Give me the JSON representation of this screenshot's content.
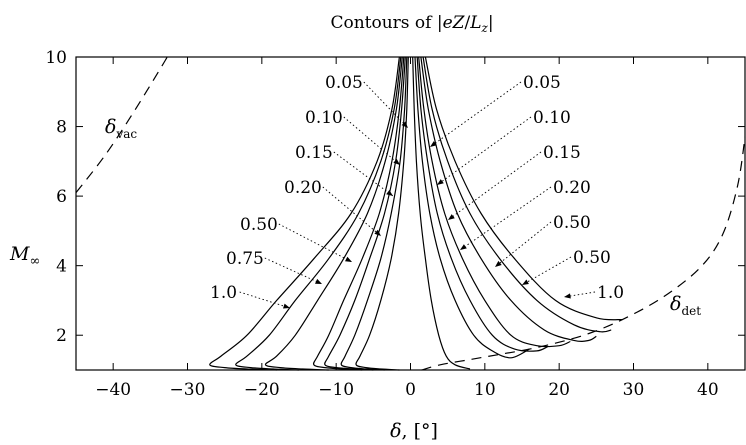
{
  "chart_data": {
    "type": "line",
    "title_parts": [
      "Contours of |",
      "eZ",
      "/",
      "L",
      "z",
      "|"
    ],
    "xlabel_parts": [
      "δ",
      ", [°]"
    ],
    "ylabel_parts": [
      "M",
      "∞"
    ],
    "xlim": [
      -45,
      45
    ],
    "ylim": [
      1,
      10
    ],
    "xticks": [
      -40,
      -30,
      -20,
      -10,
      0,
      10,
      20,
      30,
      40
    ],
    "yticks": [
      2,
      4,
      6,
      8,
      10
    ],
    "xtick_labels": [
      "−40",
      "−30",
      "−20",
      "−10",
      "0",
      "10",
      "20",
      "30",
      "40"
    ],
    "ytick_labels": [
      "2",
      "4",
      "6",
      "8",
      "10"
    ],
    "grid": false,
    "regions": [
      {
        "main": "δ",
        "sub": "vac",
        "points": [
          [
            -45,
            6.1
          ],
          [
            -41,
            7.2
          ],
          [
            -37,
            8.5
          ],
          [
            -33,
            9.9
          ],
          [
            -32.8,
            10
          ]
        ]
      },
      {
        "main": "δ",
        "sub": "det",
        "points": [
          [
            1.5,
            1
          ],
          [
            4,
            1.15
          ],
          [
            8,
            1.3
          ],
          [
            12,
            1.45
          ],
          [
            16,
            1.6
          ],
          [
            20,
            1.8
          ],
          [
            24,
            2.05
          ],
          [
            28.5,
            2.45
          ],
          [
            34,
            3.1
          ],
          [
            39,
            3.95
          ],
          [
            42,
            4.9
          ],
          [
            44,
            6.3
          ],
          [
            45,
            7.7
          ]
        ]
      }
    ],
    "series": [
      {
        "name": "1.0",
        "side": "left",
        "points": [
          [
            -1.5,
            10
          ],
          [
            -2.5,
            8.5
          ],
          [
            -4.5,
            7
          ],
          [
            -8,
            5.5
          ],
          [
            -13,
            4.2
          ],
          [
            -18,
            3
          ],
          [
            -22,
            2
          ],
          [
            -25.5,
            1.4
          ],
          [
            -27,
            1.15
          ],
          [
            -25,
            1.07
          ],
          [
            -22,
            1.03
          ],
          [
            -18,
            1
          ]
        ]
      },
      {
        "name": "0.75",
        "side": "left",
        "points": [
          [
            -1.3,
            10
          ],
          [
            -2.2,
            8.5
          ],
          [
            -4,
            7
          ],
          [
            -7,
            5.5
          ],
          [
            -11,
            4.2
          ],
          [
            -15.5,
            3
          ],
          [
            -19,
            2
          ],
          [
            -22,
            1.4
          ],
          [
            -23.5,
            1.15
          ],
          [
            -21.5,
            1.07
          ],
          [
            -18.5,
            1.03
          ],
          [
            -15,
            1
          ]
        ]
      },
      {
        "name": "0.50",
        "side": "left",
        "points": [
          [
            -1.1,
            10
          ],
          [
            -1.9,
            8.5
          ],
          [
            -3.4,
            7
          ],
          [
            -5.8,
            5.5
          ],
          [
            -9,
            4.2
          ],
          [
            -12.5,
            3
          ],
          [
            -15.5,
            2
          ],
          [
            -18,
            1.4
          ],
          [
            -19.5,
            1.15
          ],
          [
            -17.5,
            1.07
          ],
          [
            -14.5,
            1.03
          ],
          [
            -11,
            1
          ]
        ]
      },
      {
        "name": "0.20",
        "side": "left",
        "points": [
          [
            -0.9,
            10
          ],
          [
            -1.5,
            8.5
          ],
          [
            -2.5,
            7
          ],
          [
            -4.2,
            5.5
          ],
          [
            -6.5,
            4.2
          ],
          [
            -9,
            3
          ],
          [
            -11,
            2
          ],
          [
            -12.5,
            1.4
          ],
          [
            -13,
            1.15
          ],
          [
            -11.5,
            1.07
          ],
          [
            -9,
            1.03
          ],
          [
            -6.5,
            1
          ]
        ]
      },
      {
        "name": "0.15",
        "side": "left",
        "points": [
          [
            -0.7,
            10
          ],
          [
            -1.2,
            8.5
          ],
          [
            -2,
            7
          ],
          [
            -3.5,
            5.5
          ],
          [
            -5.5,
            4.2
          ],
          [
            -7.5,
            3
          ],
          [
            -9.5,
            2
          ],
          [
            -11,
            1.4
          ],
          [
            -11.5,
            1.15
          ],
          [
            -10,
            1.07
          ],
          [
            -7.5,
            1.03
          ],
          [
            -5,
            1
          ]
        ]
      },
      {
        "name": "0.10",
        "side": "left",
        "points": [
          [
            -0.5,
            10
          ],
          [
            -0.8,
            8.5
          ],
          [
            -1.4,
            7
          ],
          [
            -2.6,
            5.5
          ],
          [
            -4,
            4.2
          ],
          [
            -5.8,
            3
          ],
          [
            -7.5,
            2
          ],
          [
            -8.8,
            1.4
          ],
          [
            -9.3,
            1.15
          ],
          [
            -8,
            1.07
          ],
          [
            -6,
            1.03
          ],
          [
            -3.5,
            1
          ]
        ]
      },
      {
        "name": "0.05",
        "side": "left",
        "points": [
          [
            -0.3,
            10
          ],
          [
            -0.5,
            8.5
          ],
          [
            -0.9,
            7
          ],
          [
            -1.6,
            5.5
          ],
          [
            -2.6,
            4.2
          ],
          [
            -4,
            3
          ],
          [
            -5.5,
            2
          ],
          [
            -6.8,
            1.4
          ],
          [
            -7.3,
            1.15
          ],
          [
            -6,
            1.07
          ],
          [
            -4,
            1.03
          ],
          [
            -1.5,
            1
          ]
        ]
      },
      {
        "name": "0.05",
        "side": "right",
        "points": [
          [
            0.3,
            10
          ],
          [
            0.5,
            8.5
          ],
          [
            0.8,
            7
          ],
          [
            1.3,
            5.5
          ],
          [
            2,
            4.2
          ],
          [
            2.8,
            3
          ],
          [
            3.8,
            2
          ],
          [
            4.8,
            1.4
          ],
          [
            6,
            1.15
          ],
          [
            8,
            1.03
          ]
        ]
      },
      {
        "name": "0.10",
        "side": "right",
        "points": [
          [
            0.6,
            10
          ],
          [
            1,
            8.5
          ],
          [
            1.6,
            7
          ],
          [
            2.6,
            5.5
          ],
          [
            4,
            4.2
          ],
          [
            6,
            3
          ],
          [
            8.5,
            2
          ],
          [
            11,
            1.55
          ],
          [
            13.5,
            1.35
          ],
          [
            16,
            1.6
          ]
        ]
      },
      {
        "name": "0.15",
        "side": "right",
        "points": [
          [
            0.9,
            10
          ],
          [
            1.4,
            8.5
          ],
          [
            2.3,
            7
          ],
          [
            3.6,
            5.5
          ],
          [
            5.5,
            4.2
          ],
          [
            8,
            3
          ],
          [
            11,
            2
          ],
          [
            14,
            1.6
          ],
          [
            17,
            1.55
          ],
          [
            18.5,
            1.68
          ]
        ]
      },
      {
        "name": "0.20",
        "side": "right",
        "points": [
          [
            1.1,
            10
          ],
          [
            1.8,
            8.5
          ],
          [
            2.9,
            7
          ],
          [
            4.6,
            5.5
          ],
          [
            7,
            4.2
          ],
          [
            10,
            3
          ],
          [
            13.5,
            2
          ],
          [
            17,
            1.7
          ],
          [
            20,
            1.7
          ],
          [
            21.5,
            1.82
          ]
        ]
      },
      {
        "name": "0.50",
        "side": "right",
        "points": [
          [
            1.4,
            10
          ],
          [
            2.4,
            8.5
          ],
          [
            4,
            7
          ],
          [
            6.3,
            5.5
          ],
          [
            9.5,
            4.2
          ],
          [
            13.5,
            3
          ],
          [
            18,
            2.15
          ],
          [
            22,
            1.85
          ],
          [
            24,
            1.85
          ],
          [
            25,
            1.97
          ]
        ]
      },
      {
        "name": "0.50",
        "side": "right",
        "points": [
          [
            1.7,
            10
          ],
          [
            2.9,
            8.5
          ],
          [
            5,
            7
          ],
          [
            8,
            5.5
          ],
          [
            12,
            4.2
          ],
          [
            17,
            3
          ],
          [
            22,
            2.3
          ],
          [
            25.5,
            2.1
          ],
          [
            27,
            2.15
          ]
        ]
      },
      {
        "name": "1.0",
        "side": "right",
        "points": [
          [
            2,
            10
          ],
          [
            3.5,
            8.5
          ],
          [
            6,
            7
          ],
          [
            9.5,
            5.5
          ],
          [
            14,
            4.2
          ],
          [
            19.5,
            3
          ],
          [
            25,
            2.5
          ],
          [
            28.5,
            2.45
          ]
        ]
      }
    ],
    "label_order": [
      "1.0",
      "0.75",
      "0.50",
      "0.20",
      "0.15",
      "0.10",
      "0.05",
      "0.05",
      "0.10",
      "0.15",
      "0.20",
      "0.50",
      "0.50",
      "1.0"
    ]
  }
}
